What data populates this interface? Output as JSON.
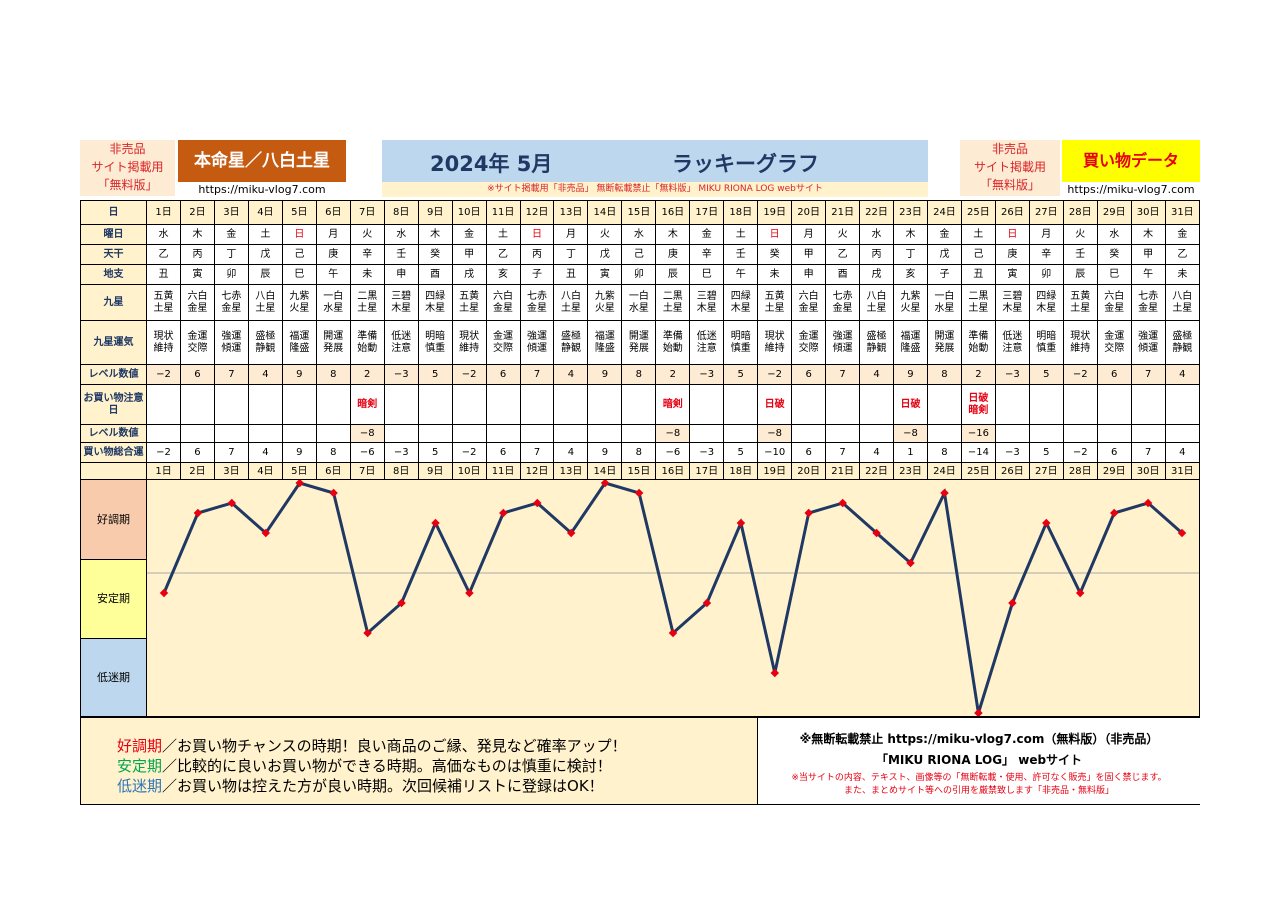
{
  "header": {
    "left_tag": [
      "非売品",
      "サイト掲載用",
      "「無料版」"
    ],
    "honmei": "本命星／八白土星",
    "url_left": "https://miku-vlog7.com",
    "title_month": "2024年 5月",
    "title_name": "ラッキーグラフ",
    "notice": "※サイト掲載用「非売品」 無断転載禁止「無料版」 MIKU RIONA LOG webサイト",
    "right_tag": [
      "非売品",
      "サイト掲載用",
      "「無料版」"
    ],
    "data_label": "買い物データ",
    "url_right": "https://miku-vlog7.com"
  },
  "labels": {
    "day": "日",
    "weekday": "曜日",
    "tenkan": "天干",
    "chishi": "地支",
    "kyusei": "九星",
    "unki": "九星運気",
    "level": "レベル数値",
    "caution": "お買い物注意日",
    "level2": "レベル数値",
    "total": "買い物総合運",
    "good": "好調期",
    "stable": "安定期",
    "low": "低迷期"
  },
  "days": [
    "1日",
    "2日",
    "3日",
    "4日",
    "5日",
    "6日",
    "7日",
    "8日",
    "9日",
    "10日",
    "11日",
    "12日",
    "13日",
    "14日",
    "15日",
    "16日",
    "17日",
    "18日",
    "19日",
    "20日",
    "21日",
    "22日",
    "23日",
    "24日",
    "25日",
    "26日",
    "27日",
    "28日",
    "29日",
    "30日",
    "31日"
  ],
  "weekdays": [
    "水",
    "木",
    "金",
    "土",
    "日",
    "月",
    "火",
    "水",
    "木",
    "金",
    "土",
    "日",
    "月",
    "火",
    "水",
    "木",
    "金",
    "土",
    "日",
    "月",
    "火",
    "水",
    "木",
    "金",
    "土",
    "日",
    "月",
    "火",
    "水",
    "木",
    "金"
  ],
  "tenkan": [
    "乙",
    "丙",
    "丁",
    "戊",
    "己",
    "庚",
    "辛",
    "壬",
    "癸",
    "甲",
    "乙",
    "丙",
    "丁",
    "戊",
    "己",
    "庚",
    "辛",
    "壬",
    "癸",
    "甲",
    "乙",
    "丙",
    "丁",
    "戊",
    "己",
    "庚",
    "辛",
    "壬",
    "癸",
    "甲",
    "乙"
  ],
  "chishi": [
    "丑",
    "寅",
    "卯",
    "辰",
    "巳",
    "午",
    "未",
    "申",
    "酉",
    "戌",
    "亥",
    "子",
    "丑",
    "寅",
    "卯",
    "辰",
    "巳",
    "午",
    "未",
    "申",
    "酉",
    "戌",
    "亥",
    "子",
    "丑",
    "寅",
    "卯",
    "辰",
    "巳",
    "午",
    "未"
  ],
  "kyusei": [
    "五黄土星",
    "六白金星",
    "七赤金星",
    "八白土星",
    "九紫火星",
    "一白水星",
    "二黒土星",
    "三碧木星",
    "四緑木星",
    "五黄土星",
    "六白金星",
    "七赤金星",
    "八白土星",
    "九紫火星",
    "一白水星",
    "二黒土星",
    "三碧木星",
    "四緑木星",
    "五黄土星",
    "六白金星",
    "七赤金星",
    "八白土星",
    "九紫火星",
    "一白水星",
    "二黒土星",
    "三碧木星",
    "四緑木星",
    "五黄土星",
    "六白金星",
    "七赤金星",
    "八白土星"
  ],
  "unki": [
    "現状維持",
    "金運交際",
    "強運傾運",
    "盛極静観",
    "福運隆盛",
    "開運発展",
    "準備始動",
    "低迷注意",
    "明暗慎重",
    "現状維持",
    "金運交際",
    "強運傾運",
    "盛極静観",
    "福運隆盛",
    "開運発展",
    "準備始動",
    "低迷注意",
    "明暗慎重",
    "現状維持",
    "金運交際",
    "強運傾運",
    "盛極静観",
    "福運隆盛",
    "開運発展",
    "準備始動",
    "低迷注意",
    "明暗慎重",
    "現状維持",
    "金運交際",
    "強運傾運",
    "盛極静観"
  ],
  "levels": [
    "−2",
    "6",
    "7",
    "4",
    "9",
    "8",
    "2",
    "−3",
    "5",
    "−2",
    "6",
    "7",
    "4",
    "9",
    "8",
    "2",
    "−3",
    "5",
    "−2",
    "6",
    "7",
    "4",
    "9",
    "8",
    "2",
    "−3",
    "5",
    "−2",
    "6",
    "7",
    "4"
  ],
  "cautions": [
    "",
    "",
    "",
    "",
    "",
    "",
    "暗剣",
    "",
    "",
    "",
    "",
    "",
    "",
    "",
    "",
    "暗剣",
    "",
    "",
    "日破",
    "",
    "",
    "",
    "日破",
    "",
    "日破 暗剣",
    "",
    "",
    "",
    "",
    "",
    ""
  ],
  "levels2": [
    "",
    "",
    "",
    "",
    "",
    "",
    "−8",
    "",
    "",
    "",
    "",
    "",
    "",
    "",
    "",
    "−8",
    "",
    "",
    "−8",
    "",
    "",
    "",
    "−8",
    "",
    "−16",
    "",
    "",
    "",
    "",
    "",
    ""
  ],
  "totals": [
    "−2",
    "6",
    "7",
    "4",
    "9",
    "8",
    "−6",
    "−3",
    "5",
    "−2",
    "6",
    "7",
    "4",
    "9",
    "8",
    "−6",
    "−3",
    "5",
    "−10",
    "6",
    "7",
    "4",
    "1",
    "8",
    "−14",
    "−3",
    "5",
    "−2",
    "6",
    "7",
    "4"
  ],
  "chart_data": {
    "type": "line",
    "x": [
      "1日",
      "2日",
      "3日",
      "4日",
      "5日",
      "6日",
      "7日",
      "8日",
      "9日",
      "10日",
      "11日",
      "12日",
      "13日",
      "14日",
      "15日",
      "16日",
      "17日",
      "18日",
      "19日",
      "20日",
      "21日",
      "22日",
      "23日",
      "24日",
      "25日",
      "26日",
      "27日",
      "28日",
      "29日",
      "30日",
      "31日"
    ],
    "series": [
      {
        "values": [
          -2,
          6,
          7,
          4,
          9,
          8,
          -6,
          -3,
          5,
          -2,
          6,
          7,
          4,
          9,
          8,
          -6,
          -3,
          5,
          -10,
          6,
          7,
          4,
          1,
          8,
          -14,
          -3,
          5,
          -2,
          6,
          7,
          4
        ]
      }
    ],
    "bands": [
      "好調期",
      "安定期",
      "低迷期"
    ],
    "line_color": "#1f3864",
    "point_color": "#e60012"
  },
  "legend": {
    "good_term": "好調期",
    "good_text": "／お買い物チャンスの時期！良い商品のご縁、発見など確率アップ！",
    "stable_term": "安定期",
    "stable_text": "／比較的に良いお買い物ができる時期。高価なものは慎重に検討！",
    "low_term": "低迷期",
    "low_text": "／お買い物は控えた方が良い時期。次回候補リストに登録はOK！"
  },
  "footer": {
    "line1": "※無断転載禁止 https://miku-vlog7.com（無料版）（非売品）",
    "line2": "「MIKU RIONA LOG」 webサイト",
    "line3": "※当サイトの内容、テキスト、画像等の「無断転載・使用、許可なく販売」を固く禁じます。",
    "line4": "また、まとめサイト等への引用を厳禁致します「非売品・無料版」"
  },
  "colors": {
    "good": "#f8cbad",
    "stable": "#ffff99",
    "low": "#bdd7ee",
    "term_good": "#e60012",
    "term_stable": "#00a651",
    "term_low": "#2e75b6"
  }
}
